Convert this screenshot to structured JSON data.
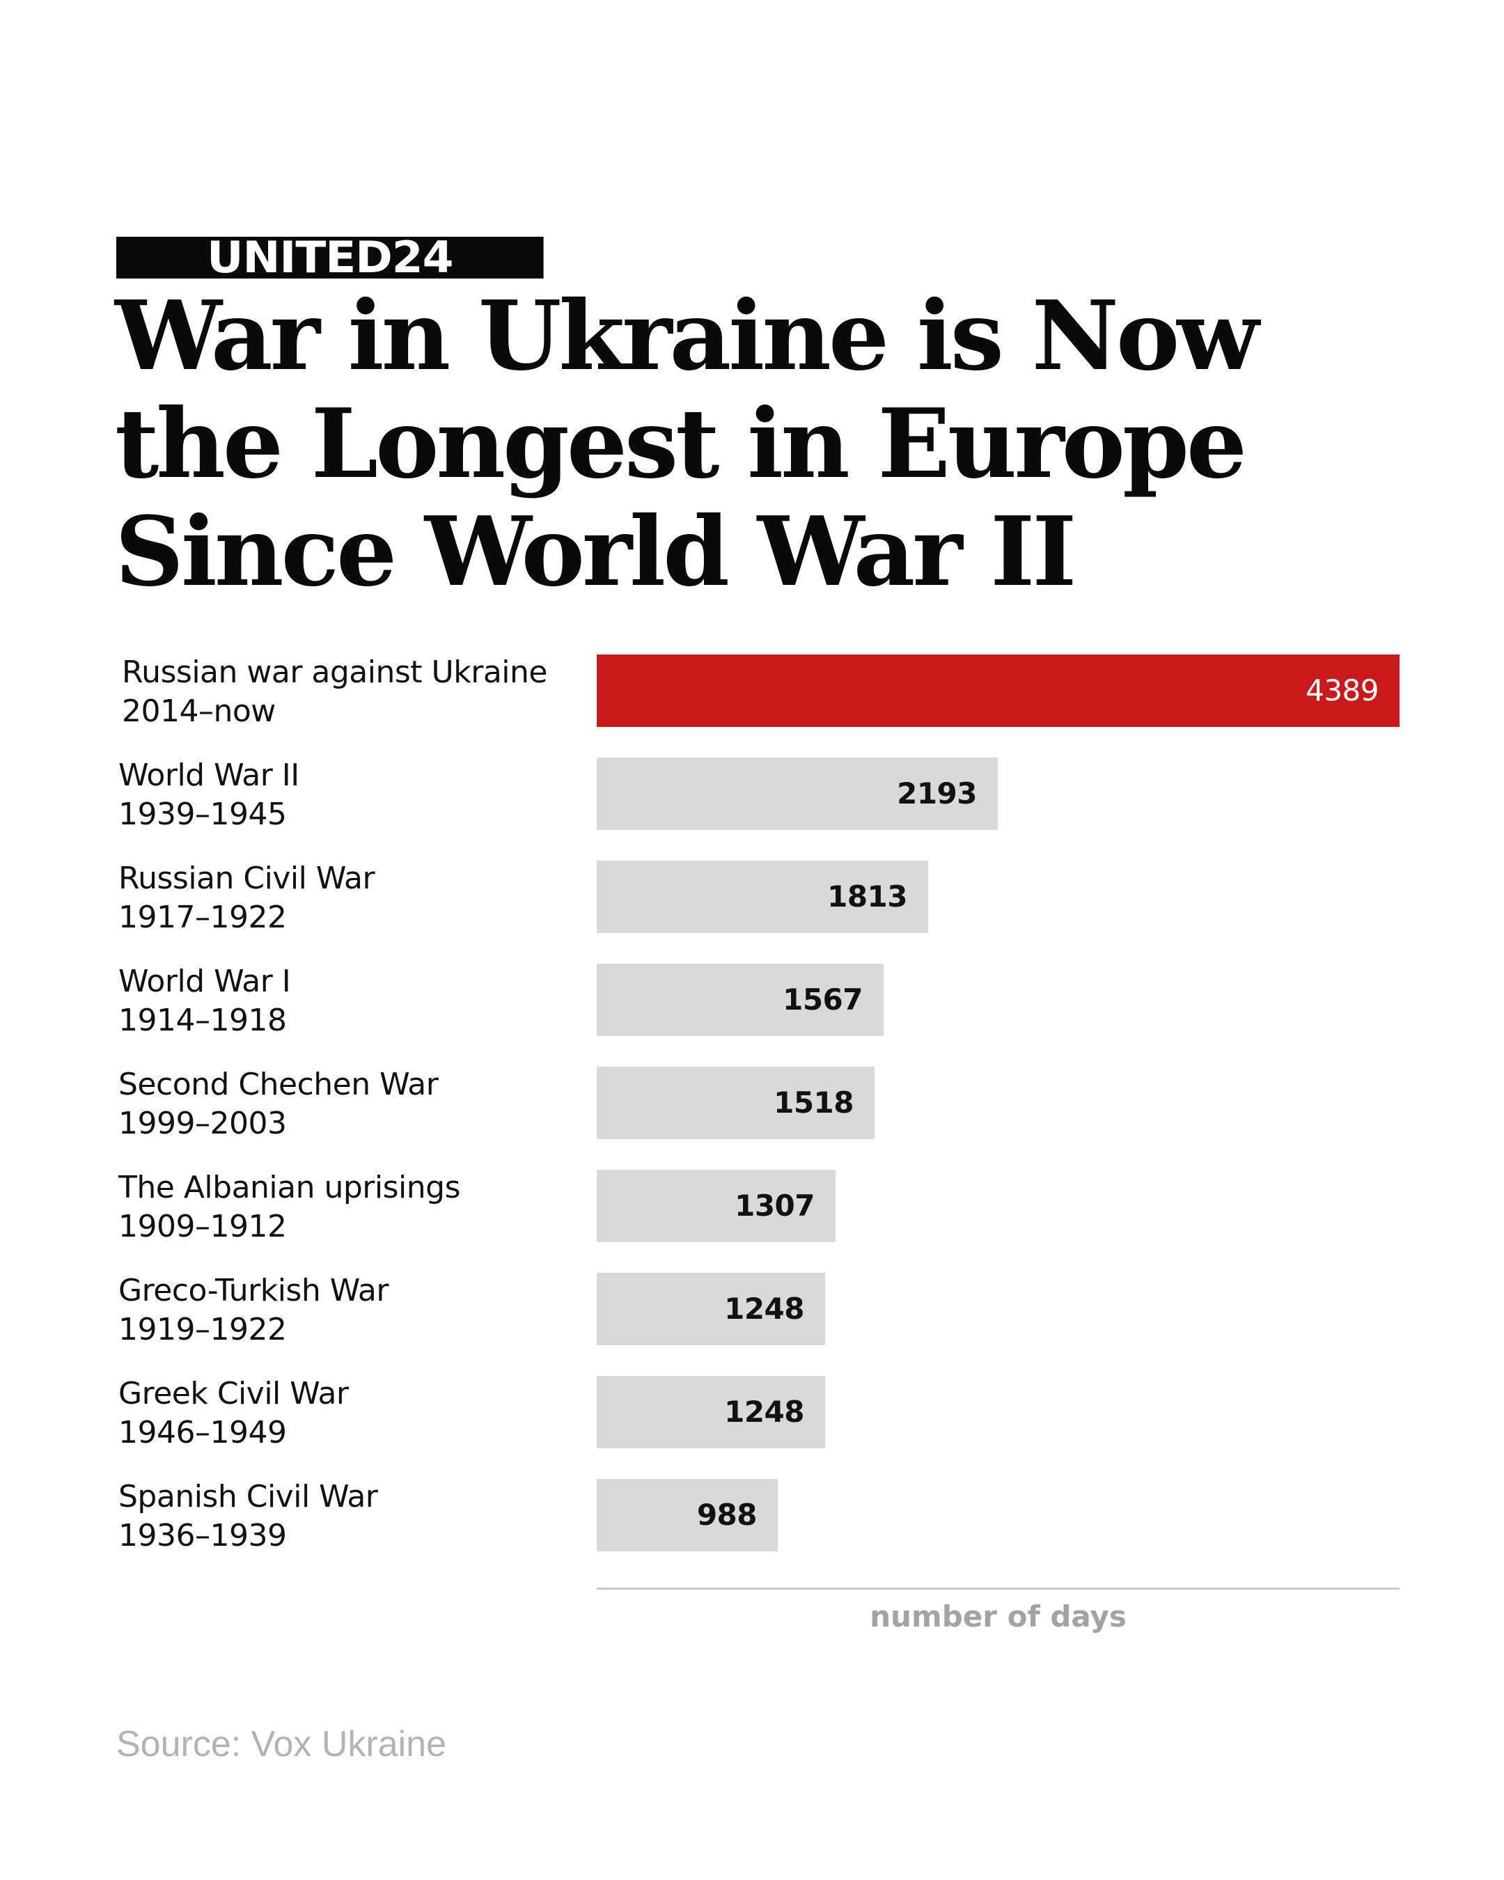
{
  "logo": "UNITED24",
  "title": "War in Ukraine is Now the Longest in Europe Since World War II",
  "source": "Source: Vox Ukraine",
  "colors": {
    "highlight": "#c8191b",
    "bar": "#d9d9d9",
    "highlight_text": "#ffffff",
    "bar_text": "#111111"
  },
  "chart_data": {
    "type": "bar",
    "orientation": "horizontal",
    "xlabel": "number of days",
    "xlim": [
      0,
      4389
    ],
    "grid": false,
    "categories": [
      {
        "name": "Russian war against Ukraine",
        "period": "2014–now",
        "value": 4389,
        "highlight": true
      },
      {
        "name": "World War II",
        "period": "1939–1945",
        "value": 2193
      },
      {
        "name": "Russian Civil War",
        "period": "1917–1922",
        "value": 1813
      },
      {
        "name": "World War I",
        "period": "1914–1918",
        "value": 1567
      },
      {
        "name": "Second Chechen War",
        "period": "1999–2003",
        "value": 1518
      },
      {
        "name": "The Albanian uprisings",
        "period": "1909–1912",
        "value": 1307
      },
      {
        "name": "Greco-Turkish War",
        "period": "1919–1922",
        "value": 1248
      },
      {
        "name": "Greek Civil War",
        "period": "1946–1949",
        "value": 1248
      },
      {
        "name": "Spanish Civil War",
        "period": "1936–1939",
        "value": 988
      }
    ]
  }
}
